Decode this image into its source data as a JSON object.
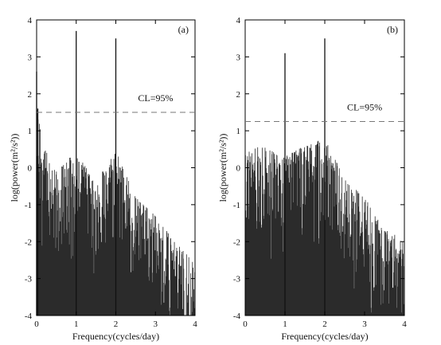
{
  "chart_data": [
    {
      "type": "line",
      "panel_label": "(a)",
      "xlabel": "Frequency(cycles/day)",
      "ylabel": "log(power(m²/s²))",
      "xlim": [
        0,
        4
      ],
      "ylim": [
        -4,
        4
      ],
      "xticks": [
        "0",
        "1",
        "2",
        "3",
        "4"
      ],
      "yticks": [
        "-4",
        "-3",
        "-2",
        "-1",
        "0",
        "1",
        "2",
        "3",
        "4"
      ],
      "confidence_label": "CL=95%",
      "confidence_level": 1.5,
      "peaks": [
        {
          "x": 0.0,
          "y": 2.6
        },
        {
          "x": 0.03,
          "y": 1.6
        },
        {
          "x": 1.0,
          "y": 3.7
        },
        {
          "x": 2.0,
          "y": 3.5
        }
      ],
      "envelope": [
        {
          "x": 0.0,
          "y": 1.6
        },
        {
          "x": 0.2,
          "y": 0.5
        },
        {
          "x": 0.5,
          "y": 0.0
        },
        {
          "x": 1.0,
          "y": 0.4
        },
        {
          "x": 1.5,
          "y": -0.4
        },
        {
          "x": 2.0,
          "y": 0.5
        },
        {
          "x": 2.5,
          "y": -0.8
        },
        {
          "x": 3.0,
          "y": -1.3
        },
        {
          "x": 3.5,
          "y": -2.0
        },
        {
          "x": 4.0,
          "y": -2.6
        }
      ]
    },
    {
      "type": "line",
      "panel_label": "(b)",
      "xlabel": "Frequency(cycles/day)",
      "ylabel": "log(power(m²/s²))",
      "xlim": [
        0,
        4
      ],
      "ylim": [
        -4,
        4
      ],
      "xticks": [
        "0",
        "1",
        "2",
        "3",
        "4"
      ],
      "yticks": [
        "-4",
        "-3",
        "-2",
        "-1",
        "0",
        "1",
        "2",
        "3",
        "4"
      ],
      "confidence_label": "CL=95%",
      "confidence_level": 1.25,
      "peaks": [
        {
          "x": 1.0,
          "y": 3.1
        },
        {
          "x": 2.0,
          "y": 3.5
        }
      ],
      "envelope": [
        {
          "x": 0.0,
          "y": 0.5
        },
        {
          "x": 0.5,
          "y": 0.6
        },
        {
          "x": 1.0,
          "y": 0.3
        },
        {
          "x": 1.5,
          "y": 0.6
        },
        {
          "x": 2.0,
          "y": 0.8
        },
        {
          "x": 2.5,
          "y": -0.3
        },
        {
          "x": 3.0,
          "y": -0.8
        },
        {
          "x": 3.5,
          "y": -1.6
        },
        {
          "x": 4.0,
          "y": -2.0
        }
      ]
    }
  ]
}
